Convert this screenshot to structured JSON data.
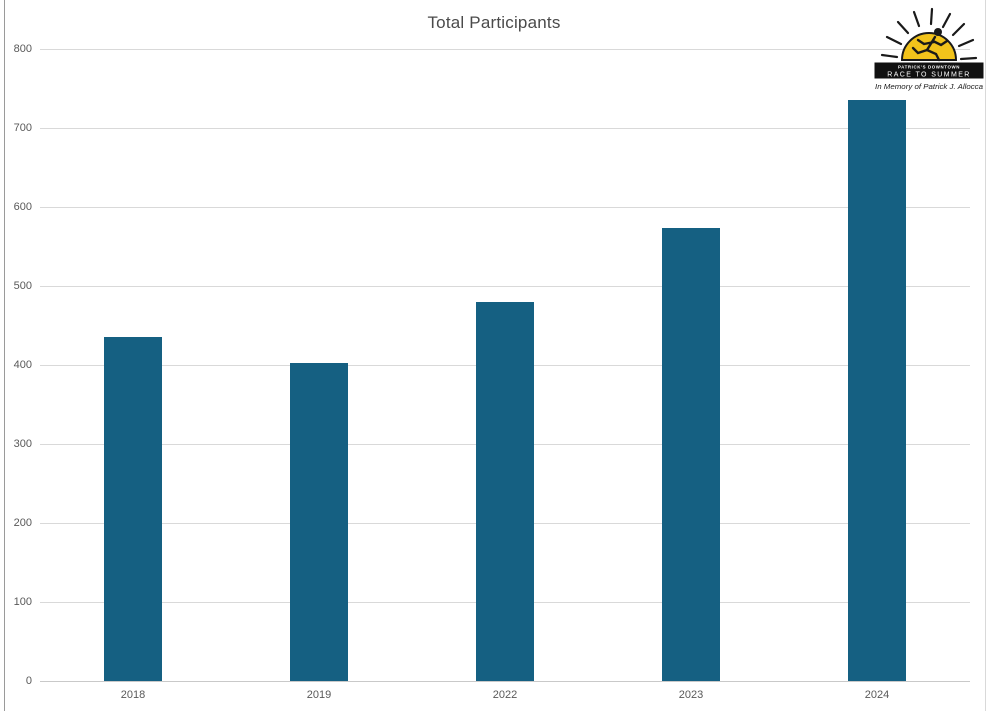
{
  "chart_data": {
    "type": "bar",
    "title": "Total Participants",
    "categories": [
      "2018",
      "2019",
      "2022",
      "2023",
      "2024"
    ],
    "values": [
      435,
      402,
      480,
      573,
      735
    ],
    "xlabel": "",
    "ylabel": "",
    "ylim": [
      0,
      800
    ],
    "ytick_step": 100,
    "grid": true,
    "legend": false,
    "bar_color": "#156082",
    "gridline_color": "#D9D9D9",
    "axis_line_color": "#C9C9C9",
    "tick_label_color": "#595959",
    "title_color": "#4A4A4A"
  },
  "logo": {
    "banner_line1": "PATRICK'S DOWNTOWN",
    "banner_line2": "RACE TO SUMMER",
    "memorial_text": "In Memory of Patrick J. Allocca",
    "sun_color": "#F2C31B",
    "banner_color": "#111111",
    "ink_color": "#1A1A1A"
  }
}
